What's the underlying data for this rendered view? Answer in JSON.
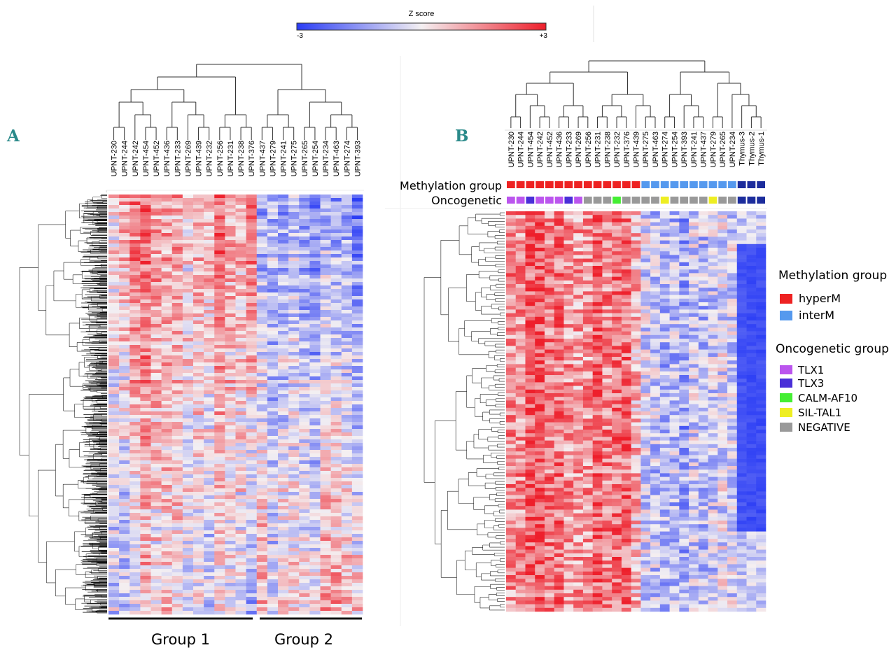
{
  "colorbar": {
    "title": "Z score",
    "min_label": "-3",
    "max_label": "+3",
    "colors": {
      "low": "#2b3df5",
      "mid": "#f4f0f2",
      "high": "#ee1f2b"
    }
  },
  "panel_a": {
    "letter": "A",
    "group_labels": [
      "Group 1",
      "Group 2"
    ]
  },
  "panel_b": {
    "letter": "B",
    "row_labels": [
      "Methylation group",
      "Oncogenetic"
    ]
  },
  "legend": {
    "methylation_title": "Methylation group",
    "methylation_items": [
      {
        "label": "hyperM",
        "color": "#ee2222"
      },
      {
        "label": "interM",
        "color": "#5599ee"
      }
    ],
    "oncogenetic_title": "Oncogenetic group",
    "oncogenetic_items": [
      {
        "label": "TLX1",
        "color": "#bb55ee"
      },
      {
        "label": "TLX3",
        "color": "#4a2fd8"
      },
      {
        "label": "CALM-AF10",
        "color": "#44ee33"
      },
      {
        "label": "SIL-TAL1",
        "color": "#eeee22"
      },
      {
        "label": "NEGATIVE",
        "color": "#999999"
      }
    ]
  },
  "chart_data": [
    {
      "type": "heatmap",
      "panel": "A",
      "title": "",
      "color_scale": {
        "label": "Z score",
        "min": -3,
        "max": 3
      },
      "columns": [
        "UPNT-230",
        "UPNT-244",
        "UPNT-242",
        "UPNT-454",
        "UPNT-452",
        "UPNT-436",
        "UPNT-233",
        "UPNT-269",
        "UPNT-439",
        "UPNT-232",
        "UPNT-256",
        "UPNT-231",
        "UPNT-238",
        "UPNT-376",
        "UPNT-437",
        "UPNT-279",
        "UPNT-241",
        "UPNT-275",
        "UPNT-265",
        "UPNT-254",
        "UPNT-234",
        "UPNT-463",
        "UPNT-274",
        "UPNT-393"
      ],
      "column_groups": [
        {
          "name": "Group 1",
          "columns": [
            "UPNT-230",
            "UPNT-244",
            "UPNT-242",
            "UPNT-454",
            "UPNT-452",
            "UPNT-436",
            "UPNT-233",
            "UPNT-269",
            "UPNT-439",
            "UPNT-232",
            "UPNT-256",
            "UPNT-231",
            "UPNT-238",
            "UPNT-376"
          ]
        },
        {
          "name": "Group 2",
          "columns": [
            "UPNT-437",
            "UPNT-279",
            "UPNT-241",
            "UPNT-275",
            "UPNT-265",
            "UPNT-254",
            "UPNT-234",
            "UPNT-463",
            "UPNT-274",
            "UPNT-393"
          ]
        }
      ],
      "column_mean_z_top": [
        0.3,
        1.0,
        1.8,
        1.9,
        1.4,
        1.0,
        1.2,
        0.4,
        1.0,
        0.9,
        2.0,
        1.1,
        0.9,
        2.2,
        -1.3,
        -1.0,
        -1.4,
        -0.9,
        -1.3,
        -1.6,
        -1.1,
        -1.4,
        -1.3,
        -2.0
      ],
      "column_mean_z_bottom": [
        -0.5,
        -0.9,
        -0.3,
        0.6,
        0.1,
        0.5,
        0.3,
        -0.3,
        0.0,
        -0.6,
        0.2,
        -0.1,
        -0.2,
        -1.4,
        1.1,
        -0.5,
        0.6,
        0.4,
        0.3,
        0.1,
        1.3,
        1.2,
        0.8,
        0.5
      ],
      "dendrogram": "hierarchical clustering of samples (top) and probes (left)"
    },
    {
      "type": "heatmap",
      "panel": "B",
      "title": "",
      "color_scale": {
        "label": "Z score",
        "min": -3,
        "max": 3
      },
      "columns": [
        "UPNT-230",
        "UPNT-244",
        "UPNT-454",
        "UPNT-242",
        "UPNT-452",
        "UPNT-436",
        "UPNT-233",
        "UPNT-269",
        "UPNT-256",
        "UPNT-231",
        "UPNT-238",
        "UPNT-232",
        "UPNT-376",
        "UPNT-439",
        "UPNT-275",
        "UPNT-463",
        "UPNT-274",
        "UPNT-254",
        "UPNT-393",
        "UPNT-241",
        "UPNT-437",
        "UPNT-279",
        "UPNT-265",
        "UPNT-234",
        "Thymus-3",
        "Thymus-2",
        "Thymus-1"
      ],
      "methylation_group": [
        "hyperM",
        "hyperM",
        "hyperM",
        "hyperM",
        "hyperM",
        "hyperM",
        "hyperM",
        "hyperM",
        "hyperM",
        "hyperM",
        "hyperM",
        "hyperM",
        "hyperM",
        "hyperM",
        "interM",
        "interM",
        "interM",
        "interM",
        "interM",
        "interM",
        "interM",
        "interM",
        "interM",
        "interM",
        "thymus",
        "thymus",
        "thymus"
      ],
      "oncogenetic_group": [
        "TLX1",
        "TLX1",
        "TLX3",
        "TLX1",
        "TLX1",
        "TLX1",
        "TLX3",
        "TLX1",
        "NEGATIVE",
        "NEGATIVE",
        "NEGATIVE",
        "CALM-AF10",
        "NEGATIVE",
        "NEGATIVE",
        "NEGATIVE",
        "NEGATIVE",
        "SIL-TAL1",
        "NEGATIVE",
        "NEGATIVE",
        "NEGATIVE",
        "NEGATIVE",
        "SIL-TAL1",
        "NEGATIVE",
        "NEGATIVE",
        "thymus",
        "thymus",
        "thymus"
      ],
      "column_mean_z": [
        1.4,
        1.4,
        2.0,
        2.2,
        1.6,
        1.7,
        1.3,
        1.2,
        1.3,
        1.9,
        1.5,
        1.8,
        1.8,
        0.8,
        -0.4,
        -0.7,
        -1.0,
        -0.8,
        -1.3,
        -0.5,
        -0.8,
        -0.6,
        -0.3,
        -0.4,
        -2.6,
        -2.7,
        -2.7
      ],
      "dendrogram": "hierarchical clustering of samples (top) and probes (left)"
    }
  ]
}
